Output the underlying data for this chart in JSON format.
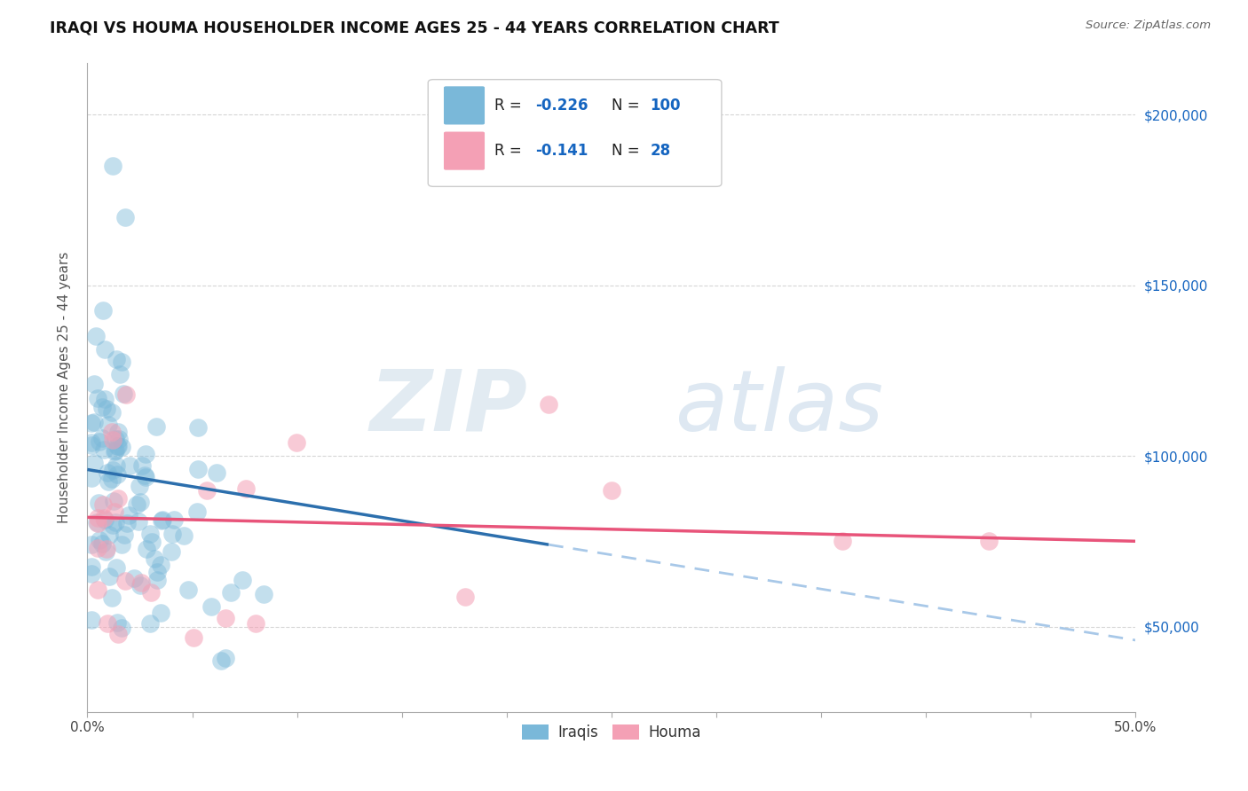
{
  "title": "IRAQI VS HOUMA HOUSEHOLDER INCOME AGES 25 - 44 YEARS CORRELATION CHART",
  "source": "Source: ZipAtlas.com",
  "ylabel": "Householder Income Ages 25 - 44 years",
  "xlim": [
    0.0,
    0.5
  ],
  "ylim": [
    25000,
    215000
  ],
  "iraqi_color": "#7ab8d9",
  "houma_color": "#f4a0b5",
  "iraqi_R": -0.226,
  "iraqi_N": 100,
  "houma_R": -0.141,
  "houma_N": 28,
  "legend_R_color": "#1565c0",
  "trend_blue_color": "#2c6fad",
  "trend_pink_color": "#e8547a",
  "trend_blue_dashed_color": "#a8c8e8",
  "background_color": "#ffffff",
  "grid_color": "#cccccc",
  "ytick_labels": [
    "$50,000",
    "$100,000",
    "$150,000",
    "$200,000"
  ],
  "ytick_vals": [
    50000,
    100000,
    150000,
    200000
  ]
}
